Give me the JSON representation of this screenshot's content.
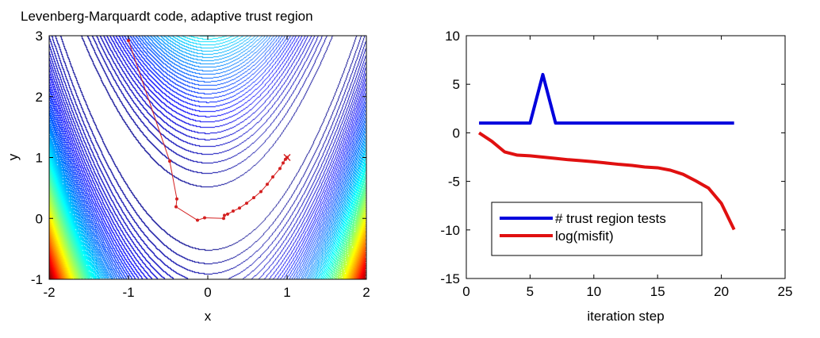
{
  "chart_data": [
    {
      "type": "line",
      "title": "Levenberg-Marquardt code, adaptive trust region",
      "xlabel": "x",
      "ylabel": "y",
      "xlim": [
        -2,
        2
      ],
      "ylim": [
        -1,
        3
      ],
      "xticks": [
        "-2",
        "-1",
        "0",
        "1",
        "2"
      ],
      "yticks": [
        "-1",
        "0",
        "1",
        "2",
        "3"
      ],
      "background": "contour of Rosenbrock function, jet colormap",
      "path": {
        "color": "#d42020",
        "x": [
          -1.0,
          -0.48,
          -0.39,
          -0.4,
          -0.13,
          -0.04,
          0.2,
          0.21,
          0.25,
          0.32,
          0.4,
          0.49,
          0.58,
          0.67,
          0.75,
          0.82,
          0.91,
          0.95,
          0.98,
          1.0
        ],
        "y": [
          2.92,
          0.94,
          0.32,
          0.19,
          -0.03,
          0.01,
          0.0,
          0.05,
          0.07,
          0.12,
          0.17,
          0.25,
          0.34,
          0.44,
          0.56,
          0.68,
          0.82,
          0.91,
          0.97,
          1.0
        ]
      },
      "end_marker": "x"
    },
    {
      "type": "line",
      "xlabel": "iteration step",
      "xlim": [
        0,
        25
      ],
      "ylim": [
        -15,
        10
      ],
      "xticks": [
        "0",
        "5",
        "10",
        "15",
        "20",
        "25"
      ],
      "yticks": [
        "10",
        "5",
        "0",
        "-5",
        "-10",
        "-15"
      ],
      "legend_position": "lower-left",
      "x": [
        1,
        2,
        3,
        4,
        5,
        6,
        7,
        8,
        9,
        10,
        11,
        12,
        13,
        14,
        15,
        16,
        17,
        18,
        19,
        20,
        21
      ],
      "series": [
        {
          "name": "# trust region tests",
          "color": "#0000dd",
          "values": [
            1,
            1,
            1,
            1,
            1,
            6,
            1,
            1,
            1,
            1,
            1,
            1,
            1,
            1,
            1,
            1,
            1,
            1,
            1,
            1,
            1
          ]
        },
        {
          "name": "log(misfit)",
          "color": "#e01010",
          "values": [
            0,
            -0.87,
            -1.96,
            -2.3,
            -2.37,
            -2.5,
            -2.63,
            -2.77,
            -2.87,
            -2.98,
            -3.11,
            -3.25,
            -3.36,
            -3.52,
            -3.6,
            -3.85,
            -4.27,
            -4.95,
            -5.7,
            -7.26,
            -9.97
          ]
        }
      ]
    }
  ]
}
